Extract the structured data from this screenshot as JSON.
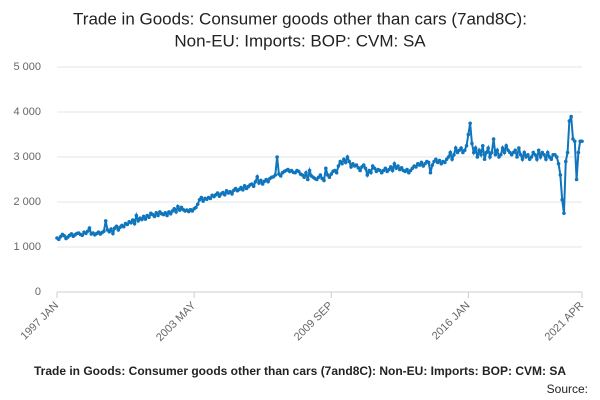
{
  "chart_data": {
    "type": "line",
    "title": [
      "Trade in Goods: Consumer goods other than cars (7and8C):",
      "Non-EU: Imports: BOP: CVM: SA"
    ],
    "caption": "Trade in Goods: Consumer goods other than cars (7and8C): Non-EU: Imports: BOP: CVM: SA",
    "source": "Source:",
    "categories": [
      "1997 JAN",
      null,
      null,
      null,
      null,
      null,
      null,
      null,
      null,
      null,
      null,
      null,
      null,
      null,
      null,
      null,
      null,
      null,
      null,
      null,
      null,
      null,
      null,
      null,
      null,
      null,
      null,
      null,
      null,
      null,
      null,
      null,
      null,
      null,
      null,
      null,
      null,
      null,
      null,
      null,
      null,
      null,
      null,
      null,
      null,
      null,
      null,
      null,
      null,
      null,
      null,
      null,
      null,
      null,
      null,
      null,
      null,
      null,
      null,
      null,
      null,
      null,
      null,
      null,
      null,
      null,
      null,
      null,
      null,
      null,
      null,
      null,
      null,
      null,
      null,
      null,
      "2003 MAY",
      null,
      null,
      null,
      null,
      null,
      null,
      null,
      null,
      null,
      null,
      null,
      null,
      null,
      null,
      null,
      null,
      null,
      null,
      null,
      null,
      null,
      null,
      null,
      null,
      null,
      null,
      null,
      null,
      null,
      null,
      null,
      null,
      null,
      null,
      null,
      null,
      null,
      null,
      null,
      null,
      null,
      null,
      null,
      null,
      null,
      null,
      null,
      null,
      null,
      null,
      null,
      null,
      null,
      null,
      null,
      null,
      null,
      null,
      null,
      null,
      null,
      null,
      null,
      null,
      null,
      null,
      null,
      null,
      null,
      null,
      null,
      null,
      null,
      null,
      null,
      "2009 SEP",
      null,
      null,
      null,
      null,
      null,
      null,
      null,
      null,
      null,
      null,
      null,
      null,
      null,
      null,
      null,
      null,
      null,
      null,
      null,
      null,
      null,
      null,
      null,
      null,
      null,
      null,
      null,
      null,
      null,
      null,
      null,
      null,
      null,
      null,
      null,
      null,
      null,
      null,
      null,
      null,
      null,
      null,
      null,
      null,
      null,
      null,
      null,
      null,
      null,
      null,
      null,
      null,
      null,
      null,
      null,
      null,
      null,
      null,
      null,
      null,
      null,
      null,
      null,
      null,
      null,
      null,
      null,
      null,
      null,
      null,
      null,
      null,
      null,
      null,
      null,
      "2016 JAN",
      null,
      null,
      null,
      null,
      null,
      null,
      null,
      null,
      null,
      null,
      null,
      null,
      null,
      null,
      null,
      null,
      null,
      null,
      null,
      null,
      null,
      null,
      null,
      null,
      null,
      null,
      null,
      null,
      null,
      null,
      null,
      null,
      null,
      null,
      null,
      null,
      null,
      null,
      null,
      null,
      null,
      null,
      null,
      null,
      null,
      null,
      null,
      null,
      null,
      null,
      null,
      null,
      null,
      null,
      null,
      null,
      null,
      null,
      null,
      null,
      null,
      null,
      "2021 APR"
    ],
    "series": [
      {
        "color": "#0f75bc",
        "values": [
          1200,
          1170,
          1230,
          1280,
          1250,
          1190,
          1220,
          1260,
          1290,
          1240,
          1270,
          1300,
          1310,
          1280,
          1260,
          1330,
          1300,
          1350,
          1420,
          1290,
          1310,
          1270,
          1300,
          1330,
          1290,
          1320,
          1350,
          1580,
          1380,
          1340,
          1400,
          1300,
          1420,
          1460,
          1380,
          1440,
          1480,
          1450,
          1520,
          1500,
          1560,
          1540,
          1600,
          1520,
          1700,
          1580,
          1640,
          1610,
          1680,
          1620,
          1700,
          1660,
          1750,
          1720,
          1680,
          1760,
          1700,
          1780,
          1740,
          1720,
          1760,
          1700,
          1780,
          1740,
          1800,
          1850,
          1780,
          1900,
          1820,
          1880,
          1830,
          1800,
          1820,
          1790,
          1830,
          1800,
          1850,
          1880,
          1950,
          2050,
          2100,
          2020,
          2080,
          2060,
          2100,
          2080,
          2150,
          2120,
          2160,
          2200,
          2130,
          2180,
          2210,
          2160,
          2250,
          2200,
          2230,
          2180,
          2260,
          2300,
          2250,
          2280,
          2320,
          2270,
          2360,
          2300,
          2340,
          2380,
          2400,
          2350,
          2450,
          2560,
          2420,
          2480,
          2400,
          2460,
          2500,
          2450,
          2520,
          2550,
          2560,
          2600,
          3000,
          2620,
          2580,
          2650,
          2680,
          2700,
          2720,
          2680,
          2700,
          2660,
          2650,
          2700,
          2680,
          2620,
          2600,
          2550,
          2650,
          2500,
          2700,
          2580,
          2550,
          2520,
          2500,
          2550,
          2600,
          2520,
          2480,
          2750,
          2600,
          2550,
          2620,
          2680,
          2700,
          2650,
          2800,
          2900,
          2850,
          2950,
          2880,
          3000,
          2900,
          2780,
          2850,
          2800,
          2820,
          2760,
          2700,
          2780,
          2820,
          2750,
          2600,
          2700,
          2650,
          2800,
          2750,
          2680,
          2720,
          2700,
          2650,
          2700,
          2750,
          2680,
          2720,
          2780,
          2700,
          2850,
          2750,
          2800,
          2720,
          2760,
          2700,
          2680,
          2720,
          2650,
          2700,
          2750,
          2800,
          2780,
          2850,
          2820,
          2880,
          2800,
          2850,
          2900,
          2880,
          2650,
          2820,
          2900,
          2950,
          2880,
          2920,
          2850,
          2900,
          2880,
          2950,
          3000,
          3100,
          2950,
          3050,
          3200,
          3100,
          3150,
          3200,
          3100,
          3150,
          3250,
          3500,
          3750,
          3300,
          3100,
          3200,
          3000,
          3150,
          3050,
          3250,
          2950,
          3100,
          3200,
          3000,
          3100,
          3400,
          3050,
          3150,
          3000,
          3050,
          3200,
          3100,
          3250,
          3150,
          3100,
          3050,
          3100,
          3150,
          3000,
          3200,
          3050,
          2950,
          3100,
          3000,
          3050,
          2950,
          3000,
          3100,
          3050,
          2950,
          3150,
          3000,
          3100,
          3050,
          2950,
          3100,
          3000,
          2950,
          3050,
          3050,
          3000,
          2850,
          2600,
          2050,
          1750,
          2900,
          3100,
          3800,
          3900,
          3400,
          3350,
          2500,
          3100,
          3350,
          3350
        ]
      }
    ],
    "ylim": [
      0,
      5000
    ],
    "yticks": [
      0,
      {
        "value": 1000,
        "label": "1 000"
      },
      {
        "value": 2000,
        "label": "2 000"
      },
      {
        "value": 3000,
        "label": "3 000"
      },
      {
        "value": 4000,
        "label": "4 000"
      },
      {
        "value": 5000,
        "label": "5 000"
      }
    ],
    "grid": true
  }
}
